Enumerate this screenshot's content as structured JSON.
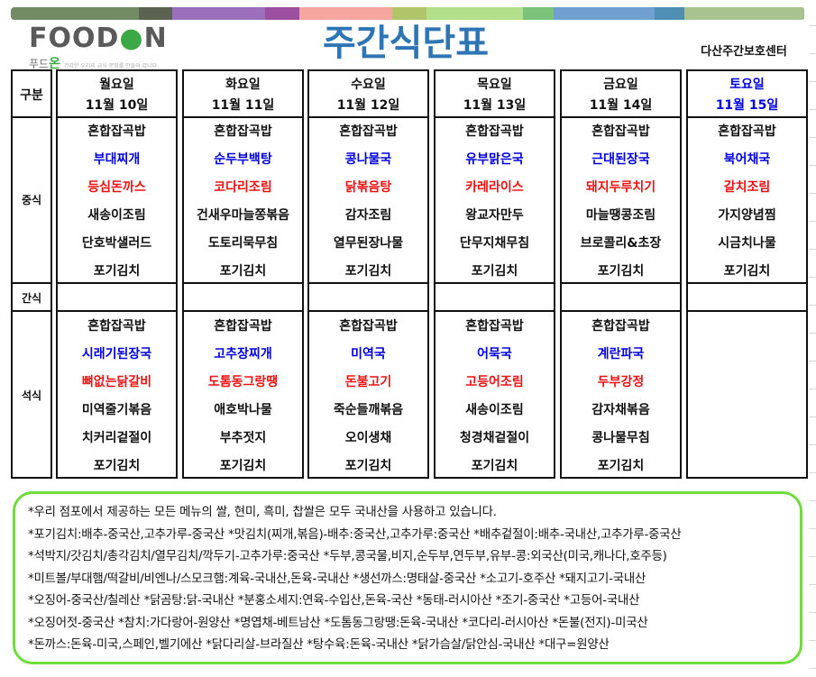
{
  "header": {
    "color_bar": [
      "#728b64",
      "#5a6350",
      "#9c6fbd",
      "#9d4f9f",
      "#f5a69e",
      "#b0c46a",
      "#b3e08a",
      "#7dc27a",
      "#6fa0d0",
      "#4f8fb5",
      "#a8c290"
    ],
    "logo": {
      "text": "FOODON",
      "korean": "푸드온",
      "tagline": "건강한 우리의 급식 문화를 만들어 갑니다."
    },
    "title": "주간식단표",
    "center_name": "다산주간보호센터"
  },
  "colors": {
    "soup": "#0000e0",
    "main": "#ee1111",
    "saturday": "#0000e0",
    "notes_border": "#6fdc3c"
  },
  "labels": {
    "category": "구분",
    "lunch": "중식",
    "snack": "간식",
    "dinner": "석식"
  },
  "days": [
    {
      "day": "월요일",
      "date": "11월 10일",
      "lunch": [
        "혼합잡곡밥",
        "부대찌개",
        "등심돈까스",
        "새송이조림",
        "단호박샐러드",
        "포기김치"
      ],
      "dinner": [
        "혼합잡곡밥",
        "시래기된장국",
        "뼈없는닭갈비",
        "미역줄기볶음",
        "치커리겉절이",
        "포기김치"
      ]
    },
    {
      "day": "화요일",
      "date": "11월 11일",
      "lunch": [
        "혼합잡곡밥",
        "순두부백탕",
        "코다리조림",
        "건새우마늘쫑볶음",
        "도토리묵무침",
        "포기김치"
      ],
      "dinner": [
        "혼합잡곡밥",
        "고추장찌개",
        "도톰동그랑땡",
        "애호박나물",
        "부추젓지",
        "포기김치"
      ]
    },
    {
      "day": "수요일",
      "date": "11월 12일",
      "lunch": [
        "혼합잡곡밥",
        "콩나물국",
        "닭볶음탕",
        "감자조림",
        "열무된장나물",
        "포기김치"
      ],
      "dinner": [
        "혼합잡곡밥",
        "미역국",
        "돈불고기",
        "죽순들깨볶음",
        "오이생채",
        "포기김치"
      ]
    },
    {
      "day": "목요일",
      "date": "11월 13일",
      "lunch": [
        "혼합잡곡밥",
        "유부맑은국",
        "카레라이스",
        "왕교자만두",
        "단무지채무침",
        "포기김치"
      ],
      "dinner": [
        "혼합잡곡밥",
        "어묵국",
        "고등어조림",
        "새송이조림",
        "청경채겉절이",
        "포기김치"
      ]
    },
    {
      "day": "금요일",
      "date": "11월 14일",
      "lunch": [
        "혼합잡곡밥",
        "근대된장국",
        "돼지두루치기",
        "마늘땡콩조림",
        "브로콜리&초장",
        "포기김치"
      ],
      "dinner": [
        "혼합잡곡밥",
        "계란파국",
        "두부강정",
        "감자채볶음",
        "콩나물무침",
        "포기김치"
      ]
    },
    {
      "day": "토요일",
      "date": "11월 15일",
      "lunch": [
        "혼합잡곡밥",
        "북어채국",
        "갈치조림",
        "가지양념찜",
        "시금치나물",
        "포기김치"
      ],
      "dinner": []
    }
  ],
  "notes": [
    "*우리 점포에서 제공하는 모든 메뉴의 쌀, 현미, 흑미, 찹쌀은 모두 국내산을 사용하고 있습니다.",
    "*포기김치:배추-중국산,고추가루-중국산  *맛김치(찌개,볶음)-배추:중국산,고추가루:중국산  *배추겉절이:배추-국내산,고추가루-중국산",
    "*석박지/갓김치/총각김치/열무김치/깍두기-고추가루:중국산  *두부,콩국물,비지,순두부,연두부,유부-콩:외국산(미국,캐나다,호주등)",
    "*미트볼/부대햄/떡갈비/비엔나/스모크햄:계육-국내산,돈육-국내산  *생선까스:명태살-중국산  *소고기-호주산  *돼지고기-국내산",
    "*오징어-중국산/칠레산  *닭곰탕:닭-국내산  *분홍소세지:연육-수입산,돈육-국산  *동태-러시아산  *조기-중국산  *고등어-국내산",
    "*오징어젓-중국산  *참치:가다랑어-원양산  *명엽채-베트남산  *도톰동그랑땡:돈육-국내산  *코다리-러시아산  *돈불(전지)-미국산",
    "*돈까스:돈육-미국,스페인,벨기에산  *닭다리살-브라질산  *탕수육:돈육-국내산  *닭가슴살/닭안심-국내산  *대구=원양산"
  ]
}
